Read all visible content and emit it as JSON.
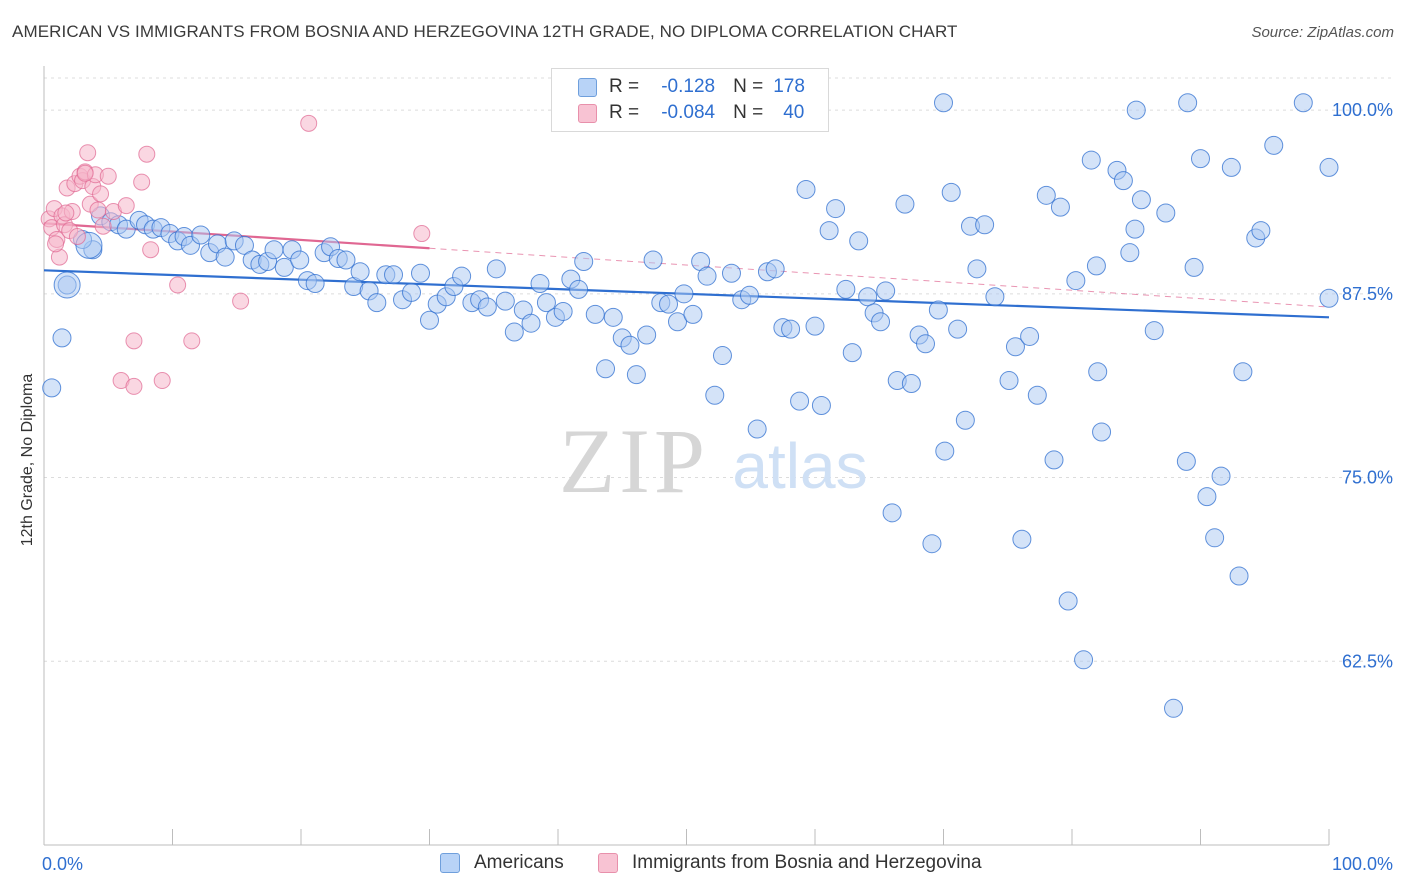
{
  "header": {
    "title": "AMERICAN VS IMMIGRANTS FROM BOSNIA AND HERZEGOVINA 12TH GRADE, NO DIPLOMA CORRELATION CHART",
    "source": "Source: ZipAtlas.com"
  },
  "watermark": {
    "zip": "ZIP",
    "atlas": "atlas"
  },
  "legend": {
    "americans": {
      "r_label": "R =",
      "r_value": "-0.128",
      "n_label": "N =",
      "n_value": "178"
    },
    "bosnia": {
      "r_label": "R =",
      "r_value": "-0.084",
      "n_label": "N =",
      "n_value": "40"
    }
  },
  "bottom_legend": {
    "americans": "Americans",
    "bosnia": "Immigrants from Bosnia and Herzegovina"
  },
  "colors": {
    "blue": "#2f6fd0",
    "blue_fill": "#a9c8f2",
    "pink": "#e06792",
    "pink_fill": "#f6b7ca",
    "grid": "#dcdcdc"
  },
  "chart_data": {
    "type": "scatter",
    "title": "AMERICAN VS IMMIGRANTS FROM BOSNIA AND HERZEGOVINA 12TH GRADE, NO DIPLOMA CORRELATION CHART",
    "xlabel": "",
    "ylabel": "12th Grade, No Diploma",
    "xlim": [
      0,
      100
    ],
    "ylim": [
      50,
      103
    ],
    "x_tick_labels": [
      {
        "value": 0,
        "label": "0.0%"
      },
      {
        "value": 100,
        "label": "100.0%"
      }
    ],
    "y_tick_labels": [
      {
        "value": 62.5,
        "label": "62.5%"
      },
      {
        "value": 75.0,
        "label": "75.0%"
      },
      {
        "value": 87.5,
        "label": "87.5%"
      },
      {
        "value": 100.0,
        "label": "100.0%"
      }
    ],
    "grid": true,
    "series": [
      {
        "name": "Americans",
        "color": "#2f6fd0",
        "R": -0.128,
        "N": 178,
        "trend": {
          "x0": 0,
          "y0": 89.1,
          "x1": 100,
          "y1": 85.9
        },
        "points": [
          [
            0.6,
            81.1
          ],
          [
            1.4,
            84.5
          ],
          [
            1.8,
            88.1
          ],
          [
            3.8,
            90.5
          ],
          [
            3.0,
            91.2
          ],
          [
            4.4,
            92.8
          ],
          [
            5.2,
            92.4
          ],
          [
            5.8,
            92.2
          ],
          [
            6.4,
            91.9
          ],
          [
            7.4,
            92.5
          ],
          [
            7.9,
            92.2
          ],
          [
            8.5,
            91.9
          ],
          [
            9.1,
            92.0
          ],
          [
            9.8,
            91.6
          ],
          [
            10.4,
            91.1
          ],
          [
            10.9,
            91.4
          ],
          [
            11.4,
            90.8
          ],
          [
            12.2,
            91.5
          ],
          [
            12.9,
            90.3
          ],
          [
            13.5,
            90.9
          ],
          [
            14.1,
            90.0
          ],
          [
            14.8,
            91.1
          ],
          [
            15.6,
            90.8
          ],
          [
            16.2,
            89.8
          ],
          [
            16.8,
            89.5
          ],
          [
            17.4,
            89.7
          ],
          [
            17.9,
            90.5
          ],
          [
            18.7,
            89.3
          ],
          [
            19.3,
            90.5
          ],
          [
            19.9,
            89.8
          ],
          [
            20.5,
            88.4
          ],
          [
            21.1,
            88.2
          ],
          [
            21.8,
            90.3
          ],
          [
            22.3,
            90.7
          ],
          [
            22.9,
            89.9
          ],
          [
            23.5,
            89.8
          ],
          [
            24.1,
            88.0
          ],
          [
            24.6,
            89.0
          ],
          [
            25.3,
            87.7
          ],
          [
            25.9,
            86.9
          ],
          [
            26.6,
            88.8
          ],
          [
            27.2,
            88.8
          ],
          [
            27.9,
            87.1
          ],
          [
            28.6,
            87.6
          ],
          [
            29.3,
            88.9
          ],
          [
            30.0,
            85.7
          ],
          [
            30.6,
            86.8
          ],
          [
            31.3,
            87.3
          ],
          [
            31.9,
            88.0
          ],
          [
            32.5,
            88.7
          ],
          [
            33.3,
            86.9
          ],
          [
            33.9,
            87.1
          ],
          [
            34.5,
            86.6
          ],
          [
            35.2,
            89.2
          ],
          [
            35.9,
            87.0
          ],
          [
            36.6,
            84.9
          ],
          [
            37.3,
            86.4
          ],
          [
            37.9,
            85.5
          ],
          [
            38.6,
            88.2
          ],
          [
            39.1,
            86.9
          ],
          [
            39.8,
            85.9
          ],
          [
            40.4,
            86.3
          ],
          [
            41.0,
            88.5
          ],
          [
            41.6,
            87.8
          ],
          [
            42.0,
            89.7
          ],
          [
            42.9,
            86.1
          ],
          [
            43.7,
            82.4
          ],
          [
            44.3,
            85.9
          ],
          [
            45.0,
            84.5
          ],
          [
            45.6,
            84.0
          ],
          [
            46.1,
            82.0
          ],
          [
            46.9,
            84.7
          ],
          [
            47.4,
            89.8
          ],
          [
            48.0,
            86.9
          ],
          [
            48.6,
            86.8
          ],
          [
            49.3,
            85.6
          ],
          [
            49.8,
            87.5
          ],
          [
            50.5,
            86.1
          ],
          [
            51.1,
            89.7
          ],
          [
            51.6,
            88.7
          ],
          [
            52.2,
            80.6
          ],
          [
            52.8,
            83.3
          ],
          [
            53.5,
            88.9
          ],
          [
            54.3,
            87.1
          ],
          [
            54.9,
            87.4
          ],
          [
            55.5,
            78.3
          ],
          [
            56.3,
            89.0
          ],
          [
            56.9,
            89.2
          ],
          [
            57.5,
            85.2
          ],
          [
            58.1,
            85.1
          ],
          [
            58.8,
            80.2
          ],
          [
            59.3,
            94.6
          ],
          [
            60.0,
            85.3
          ],
          [
            60.5,
            79.9
          ],
          [
            61.1,
            91.8
          ],
          [
            61.6,
            93.3
          ],
          [
            62.4,
            87.8
          ],
          [
            62.9,
            83.5
          ],
          [
            63.4,
            91.1
          ],
          [
            64.1,
            87.3
          ],
          [
            64.6,
            86.2
          ],
          [
            65.1,
            85.6
          ],
          [
            65.5,
            87.7
          ],
          [
            66.0,
            72.6
          ],
          [
            66.4,
            81.6
          ],
          [
            67.0,
            93.6
          ],
          [
            67.5,
            81.4
          ],
          [
            68.1,
            84.7
          ],
          [
            68.6,
            84.1
          ],
          [
            69.1,
            70.5
          ],
          [
            69.6,
            86.4
          ],
          [
            70.1,
            76.8
          ],
          [
            70.6,
            94.4
          ],
          [
            71.1,
            85.1
          ],
          [
            71.7,
            78.9
          ],
          [
            72.1,
            92.1
          ],
          [
            72.6,
            89.2
          ],
          [
            73.2,
            92.2
          ],
          [
            74.0,
            87.3
          ],
          [
            75.1,
            81.6
          ],
          [
            75.6,
            83.9
          ],
          [
            76.1,
            70.8
          ],
          [
            76.7,
            84.6
          ],
          [
            77.3,
            80.6
          ],
          [
            78.0,
            94.2
          ],
          [
            78.6,
            76.2
          ],
          [
            79.1,
            93.4
          ],
          [
            79.7,
            66.6
          ],
          [
            80.3,
            88.4
          ],
          [
            80.9,
            62.6
          ],
          [
            81.5,
            96.6
          ],
          [
            81.9,
            89.4
          ],
          [
            82.0,
            82.2
          ],
          [
            82.3,
            78.1
          ],
          [
            83.5,
            95.9
          ],
          [
            84.0,
            95.2
          ],
          [
            84.5,
            90.3
          ],
          [
            84.9,
            91.9
          ],
          [
            85.4,
            93.9
          ],
          [
            86.4,
            85.0
          ],
          [
            87.3,
            93.0
          ],
          [
            87.9,
            59.3
          ],
          [
            88.9,
            76.1
          ],
          [
            89.5,
            89.3
          ],
          [
            90.0,
            96.7
          ],
          [
            90.5,
            73.7
          ],
          [
            91.1,
            70.9
          ],
          [
            91.6,
            75.1
          ],
          [
            92.4,
            96.1
          ],
          [
            93.0,
            68.3
          ],
          [
            93.3,
            82.2
          ],
          [
            94.3,
            91.3
          ],
          [
            94.7,
            91.8
          ],
          [
            95.7,
            97.6
          ],
          [
            100.0,
            87.2
          ],
          [
            100.0,
            96.1
          ],
          [
            98.0,
            100.5
          ],
          [
            89.0,
            100.5
          ],
          [
            85.0,
            100.0
          ],
          [
            70.0,
            100.5
          ]
        ],
        "big_points": [
          [
            3.5,
            90.8
          ],
          [
            1.8,
            88.1
          ]
        ]
      },
      {
        "name": "Immigrants from Bosnia and Herzegovina",
        "color": "#e06792",
        "R": -0.084,
        "N": 40,
        "trend": {
          "x0": 0,
          "y0": 92.3,
          "x1": 30.0,
          "y1": 90.6
        },
        "trend_extension": {
          "x0": 30.0,
          "y0": 90.6,
          "x1": 100,
          "y1": 86.6
        },
        "points": [
          [
            0.4,
            92.6
          ],
          [
            0.6,
            92.0
          ],
          [
            0.8,
            93.3
          ],
          [
            1.0,
            91.2
          ],
          [
            1.2,
            90.0
          ],
          [
            1.4,
            92.8
          ],
          [
            1.6,
            92.2
          ],
          [
            1.8,
            94.7
          ],
          [
            2.0,
            91.8
          ],
          [
            2.2,
            93.1
          ],
          [
            2.4,
            95.0
          ],
          [
            2.6,
            91.4
          ],
          [
            2.8,
            95.5
          ],
          [
            3.0,
            95.2
          ],
          [
            3.2,
            95.8
          ],
          [
            3.4,
            97.1
          ],
          [
            3.6,
            93.6
          ],
          [
            3.8,
            94.8
          ],
          [
            4.0,
            95.6
          ],
          [
            4.2,
            93.2
          ],
          [
            4.4,
            94.3
          ],
          [
            4.6,
            92.1
          ],
          [
            5.0,
            95.5
          ],
          [
            5.4,
            93.1
          ],
          [
            6.0,
            81.6
          ],
          [
            6.4,
            93.5
          ],
          [
            7.0,
            81.2
          ],
          [
            7.6,
            95.1
          ],
          [
            8.0,
            97.0
          ],
          [
            8.3,
            90.5
          ],
          [
            9.2,
            81.6
          ],
          [
            10.4,
            88.1
          ],
          [
            11.5,
            84.3
          ],
          [
            15.3,
            87.0
          ],
          [
            20.6,
            99.1
          ],
          [
            29.4,
            91.6
          ],
          [
            0.9,
            90.9
          ],
          [
            1.7,
            93.0
          ],
          [
            3.2,
            95.7
          ],
          [
            7.0,
            84.3
          ]
        ]
      }
    ]
  }
}
